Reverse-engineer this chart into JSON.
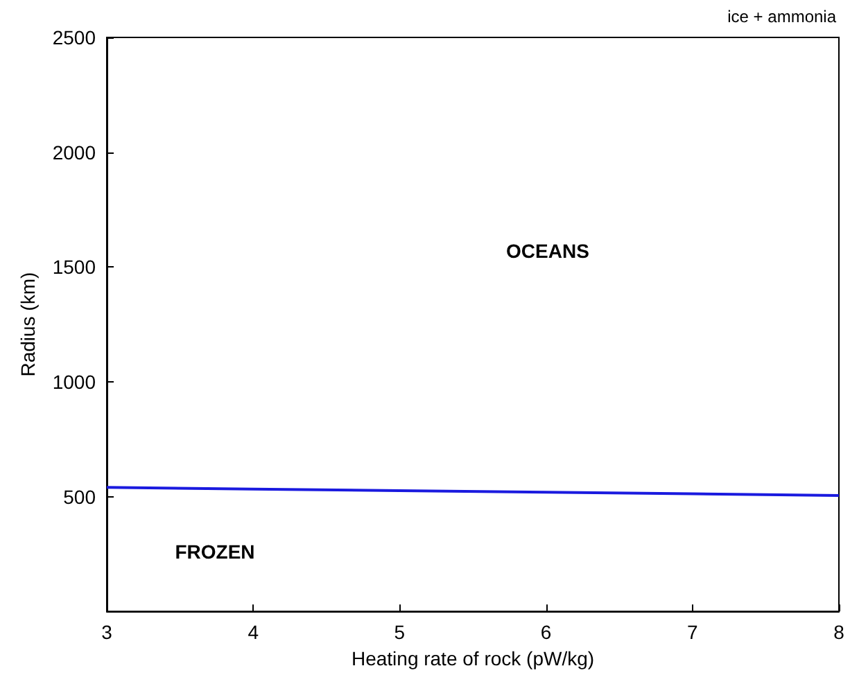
{
  "chart_data": {
    "type": "line",
    "xlabel": "Heating rate of rock (pW/kg)",
    "ylabel": "Radius (km)",
    "x": [
      3,
      4,
      5,
      6,
      7,
      8
    ],
    "series": [
      {
        "color": "#1a1adf",
        "values": [
          540,
          533,
          526,
          519,
          512,
          505
        ]
      }
    ],
    "xlim": [
      3,
      8
    ],
    "xticks": [
      3,
      4,
      5,
      6,
      7,
      8
    ],
    "ylim": [
      0,
      2500
    ],
    "yticks": [
      500,
      1000,
      1500,
      2000,
      2500
    ],
    "grid": false,
    "marker": "none",
    "line_style": "solid",
    "annotations": [
      "ice + ammonia",
      "OCEANS",
      "FROZEN"
    ]
  }
}
